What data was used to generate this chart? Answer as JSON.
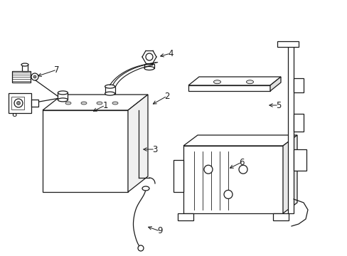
{
  "background_color": "#ffffff",
  "line_color": "#1a1a1a",
  "figsize": [
    4.89,
    3.6
  ],
  "dpi": 100,
  "lw": 0.9
}
